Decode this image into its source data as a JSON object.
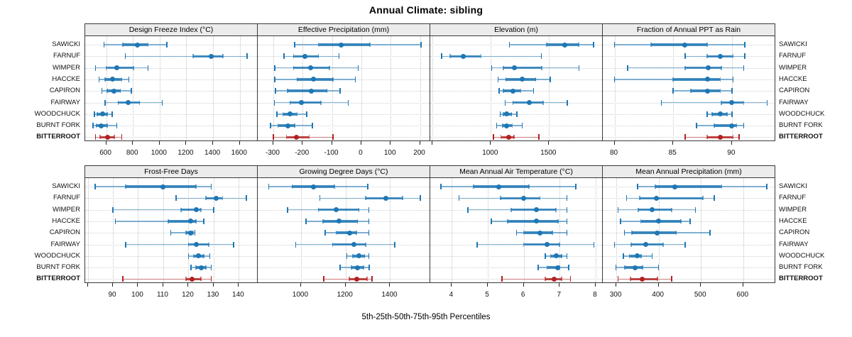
{
  "title": "Annual Climate: sibling",
  "caption": "5th-25th-50th-75th-95th Percentiles",
  "colors": {
    "series_default": "#1f77b4",
    "series_highlight": "#b22222",
    "strip_bg": "#ececec",
    "panel_border": "#3a3a3a",
    "gridline": "#c8c8c8"
  },
  "chart_data": {
    "type": "scatter",
    "subtype": "percentile-interval-dotplot (lattice-style, 2x4 panels)",
    "percentile_labels": [
      "5th",
      "25th",
      "50th",
      "75th",
      "95th"
    ],
    "legend_position": "none",
    "grid": true,
    "sites": [
      "SAWICKI",
      "FARNUF",
      "WIMPER",
      "HACCKE",
      "CAPIRON",
      "FAIRWAY",
      "WOODCHUCK",
      "BURNT FORK",
      "BITTERROOT"
    ],
    "highlight_site": "BITTERROOT",
    "panels": [
      {
        "title": "Design Freeze Index (°C)",
        "row": 0,
        "col": 0,
        "xlim": [
          443,
          1734
        ],
        "ticks": [
          600,
          800,
          1000,
          1200,
          1400,
          1600
        ],
        "tick_labels": [
          "600",
          "800",
          "1000",
          "1200",
          "1400",
          "1600"
        ],
        "values": {
          "SAWICKI": [
            584,
            725,
            836,
            913,
            1055
          ],
          "FARNUF": [
            743,
            1252,
            1386,
            1475,
            1654
          ],
          "WIMPER": [
            520,
            600,
            680,
            805,
            913
          ],
          "HACCKE": [
            546,
            591,
            650,
            716,
            770
          ],
          "CAPIRON": [
            568,
            609,
            659,
            707,
            787
          ],
          "FAIRWAY": [
            591,
            689,
            766,
            850,
            1020
          ],
          "WOODCHUCK": [
            511,
            532,
            573,
            609,
            645
          ],
          "BURNT FORK": [
            502,
            525,
            564,
            609,
            680
          ],
          "BITTERROOT": [
            520,
            555,
            609,
            662,
            716
          ]
        }
      },
      {
        "title": "Effective Precipitation (mm)",
        "row": 0,
        "col": 1,
        "xlim": [
          -353,
          235
        ],
        "ticks": [
          -300,
          -200,
          -100,
          0,
          100,
          200
        ],
        "tick_labels": [
          "-300",
          "-200",
          "-100",
          "0",
          "100",
          "200"
        ],
        "values": {
          "SAWICKI": [
            -227,
            -146,
            -68,
            29,
            203
          ],
          "FARNUF": [
            -263,
            -231,
            -193,
            -146,
            -76
          ],
          "WIMPER": [
            -295,
            -231,
            -172,
            -109,
            -11
          ],
          "HACCKE": [
            -295,
            -219,
            -164,
            -97,
            -20
          ],
          "CAPIRON": [
            -292,
            -251,
            -170,
            -117,
            -72
          ],
          "FAIRWAY": [
            -296,
            -243,
            -205,
            -137,
            -44
          ],
          "WOODCHUCK": [
            -288,
            -267,
            -243,
            -219,
            -186
          ],
          "BURNT FORK": [
            -310,
            -284,
            -251,
            -227,
            -166
          ],
          "BITTERROOT": [
            -300,
            -255,
            -221,
            -178,
            -97
          ]
        }
      },
      {
        "title": "Elevation (m)",
        "row": 0,
        "col": 2,
        "xlim": [
          480,
          1961
        ],
        "ticks": [
          500,
          1000,
          1500
        ],
        "tick_labels": [
          "",
          "1000",
          "1500"
        ],
        "values": {
          "SAWICKI": [
            1159,
            1480,
            1632,
            1752,
            1880
          ],
          "FARNUF": [
            579,
            650,
            762,
            915,
            1433
          ],
          "WIMPER": [
            1006,
            1108,
            1205,
            1437,
            1758
          ],
          "HACCKE": [
            1061,
            1128,
            1270,
            1386,
            1510
          ],
          "CAPIRON": [
            1073,
            1108,
            1189,
            1256,
            1368
          ],
          "FAIRWAY": [
            1122,
            1189,
            1331,
            1449,
            1657
          ],
          "WOODCHUCK": [
            1081,
            1108,
            1138,
            1179,
            1224
          ],
          "BURNT FORK": [
            1051,
            1102,
            1138,
            1183,
            1270
          ],
          "BITTERROOT": [
            1022,
            1087,
            1152,
            1199,
            1413
          ]
        }
      },
      {
        "title": "Fraction of Annual PPT as Rain",
        "row": 0,
        "col": 3,
        "xlim": [
          79,
          93.7
        ],
        "ticks": [
          80,
          85,
          90
        ],
        "tick_labels": [
          "80",
          "85",
          "90"
        ],
        "values": {
          "SAWICKI": [
            80,
            83.1,
            86,
            87.9,
            91.1
          ],
          "FARNUF": [
            86,
            87.9,
            89,
            90.1,
            91.1
          ],
          "WIMPER": [
            81.1,
            86,
            88,
            89.1,
            91
          ],
          "HACCKE": [
            80,
            85,
            87.9,
            89,
            90.1
          ],
          "CAPIRON": [
            85,
            86.5,
            87.9,
            89,
            90
          ],
          "FAIRWAY": [
            84,
            89.1,
            90,
            91,
            93
          ],
          "WOODCHUCK": [
            87.9,
            88.3,
            89,
            89.6,
            90
          ],
          "BURNT FORK": [
            87,
            88.5,
            90,
            90.4,
            91
          ],
          "BITTERROOT": [
            86,
            87.9,
            89,
            90.1,
            90.6
          ]
        }
      },
      {
        "title": "Frost-Free Days",
        "row": 1,
        "col": 0,
        "xlim": [
          79,
          147.5
        ],
        "ticks": [
          80,
          90,
          100,
          110,
          120,
          130,
          140
        ],
        "tick_labels": [
          "",
          "90",
          "100",
          "110",
          "120",
          "130",
          "140"
        ],
        "values": {
          "SAWICKI": [
            83,
            95,
            110,
            123,
            129
          ],
          "FARNUF": [
            115,
            127,
            131,
            133.5,
            143
          ],
          "WIMPER": [
            90,
            117,
            123,
            125,
            130
          ],
          "HACCKE": [
            91,
            112,
            121,
            123,
            126
          ],
          "CAPIRON": [
            113,
            119,
            121,
            121.8,
            122.5
          ],
          "FAIRWAY": [
            95,
            120,
            123,
            128,
            138
          ],
          "WOODCHUCK": [
            120,
            122,
            124,
            126,
            128.5
          ],
          "BURNT FORK": [
            121,
            123,
            125,
            127,
            129
          ],
          "BITTERROOT": [
            94,
            119,
            121.5,
            125,
            129
          ]
        }
      },
      {
        "title": "Growing Degree Days (°C)",
        "row": 1,
        "col": 1,
        "xlim": [
          806,
          1580
        ],
        "ticks": [
          1000,
          1200,
          1400
        ],
        "tick_labels": [
          "1000",
          "1200",
          "1400"
        ],
        "values": {
          "SAWICKI": [
            855,
            960,
            1055,
            1150,
            1300
          ],
          "FARNUF": [
            1085,
            1290,
            1380,
            1455,
            1535
          ],
          "WIMPER": [
            940,
            1078,
            1158,
            1260,
            1305
          ],
          "HACCKE": [
            1022,
            1099,
            1172,
            1254,
            1305
          ],
          "CAPIRON": [
            1108,
            1158,
            1217,
            1249,
            1305
          ],
          "FAIRWAY": [
            977,
            1142,
            1238,
            1291,
            1421
          ],
          "WOODCHUCK": [
            1206,
            1233,
            1259,
            1286,
            1305
          ],
          "BURNT FORK": [
            1176,
            1227,
            1254,
            1281,
            1307
          ],
          "BITTERROOT": [
            1102,
            1217,
            1249,
            1297,
            1318
          ]
        }
      },
      {
        "title": "Mean Annual Air Temperature (°C)",
        "row": 1,
        "col": 2,
        "xlim": [
          3.4,
          8.2
        ],
        "ticks": [
          4,
          5,
          6,
          7,
          8
        ],
        "tick_labels": [
          "4",
          "5",
          "6",
          "7",
          "8"
        ],
        "values": {
          "SAWICKI": [
            3.7,
            4.6,
            5.3,
            6.15,
            7.45
          ],
          "FARNUF": [
            4.2,
            5.35,
            6.0,
            6.45,
            7.2
          ],
          "WIMPER": [
            4.45,
            5.65,
            6.35,
            6.9,
            7.2
          ],
          "HACCKE": [
            5.1,
            5.55,
            6.35,
            6.95,
            7.2
          ],
          "CAPIRON": [
            5.8,
            6.0,
            6.45,
            6.8,
            7.2
          ],
          "FAIRWAY": [
            4.7,
            6.0,
            6.65,
            7.0,
            7.95
          ],
          "WOODCHUCK": [
            6.6,
            6.75,
            6.9,
            7.05,
            7.2
          ],
          "BURNT FORK": [
            6.4,
            6.65,
            6.95,
            7.0,
            7.25
          ],
          "BITTERROOT": [
            5.4,
            6.6,
            6.85,
            7.05,
            7.3
          ]
        }
      },
      {
        "title": "Mean Annual Precipitation (mm)",
        "row": 1,
        "col": 3,
        "xlim": [
          268,
          676
        ],
        "ticks": [
          300,
          400,
          500,
          600
        ],
        "tick_labels": [
          "300",
          "400",
          "500",
          "600"
        ],
        "values": {
          "SAWICKI": [
            350,
            392,
            439,
            549,
            656
          ],
          "FARNUF": [
            324,
            355,
            394,
            505,
            532
          ],
          "WIMPER": [
            304,
            352,
            384,
            431,
            487
          ],
          "HACCKE": [
            310,
            358,
            399,
            453,
            475
          ],
          "CAPIRON": [
            319,
            337,
            397,
            442,
            522
          ],
          "FAIRWAY": [
            296,
            335,
            369,
            411,
            463
          ],
          "WOODCHUCK": [
            317,
            331,
            349,
            359,
            385
          ],
          "BURNT FORK": [
            299,
            320,
            345,
            362,
            400
          ],
          "BITTERROOT": [
            304,
            333,
            362,
            397,
            431
          ]
        }
      }
    ]
  }
}
